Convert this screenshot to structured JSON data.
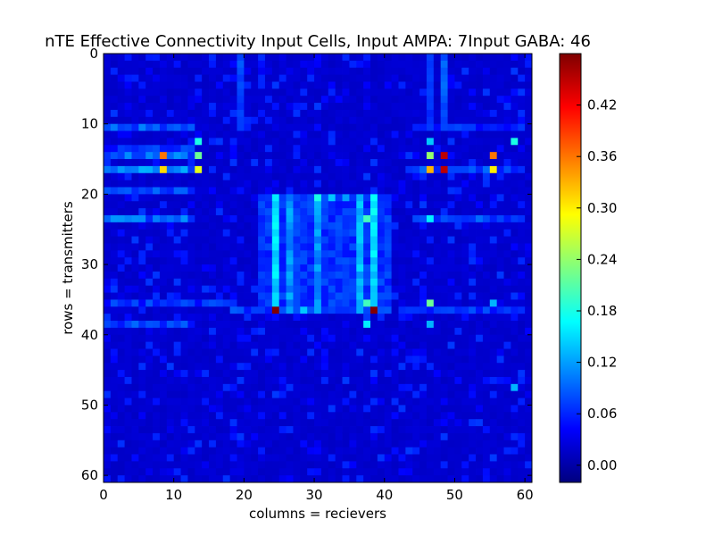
{
  "chart_data": {
    "type": "heatmap",
    "title": "nTE Effective Connectivity Input Cells, Input AMPA: 7Input GABA: 46",
    "xlabel": "columns = recievers",
    "ylabel": "rows = transmitters",
    "xlim": [
      0,
      61
    ],
    "ylim": [
      0,
      61
    ],
    "y_inverted": true,
    "n_rows": 61,
    "n_cols": 61,
    "x_ticks": [
      "0",
      "10",
      "20",
      "30",
      "40",
      "50",
      "60"
    ],
    "y_ticks": [
      "0",
      "10",
      "20",
      "30",
      "40",
      "50",
      "60"
    ],
    "colormap": "jet",
    "color_range": [
      -0.02,
      0.48
    ],
    "colorbar_ticks": [
      "0.00",
      "0.06",
      "0.12",
      "0.18",
      "0.24",
      "0.30",
      "0.36",
      "0.42"
    ],
    "background_value": 0.02,
    "row_bands": [
      {
        "row": 10,
        "cols": [
          0,
          12
        ],
        "value": 0.09
      },
      {
        "row": 13,
        "cols": [
          0,
          12
        ],
        "value": 0.07
      },
      {
        "row": 14,
        "cols": [
          0,
          12
        ],
        "value": 0.1
      },
      {
        "row": 16,
        "cols": [
          0,
          12
        ],
        "value": 0.11
      },
      {
        "row": 19,
        "cols": [
          0,
          12
        ],
        "value": 0.08
      },
      {
        "row": 23,
        "cols": [
          0,
          12
        ],
        "value": 0.1
      },
      {
        "row": 35,
        "cols": [
          0,
          18
        ],
        "value": 0.07
      },
      {
        "row": 36,
        "cols": [
          18,
          40
        ],
        "value": 0.08
      },
      {
        "row": 38,
        "cols": [
          0,
          12
        ],
        "value": 0.08
      },
      {
        "row": 10,
        "cols": [
          44,
          59
        ],
        "value": 0.07
      },
      {
        "row": 16,
        "cols": [
          44,
          59
        ],
        "value": 0.08
      },
      {
        "row": 23,
        "cols": [
          44,
          59
        ],
        "value": 0.08
      },
      {
        "row": 36,
        "cols": [
          44,
          59
        ],
        "value": 0.07
      }
    ],
    "col_bands": [
      {
        "col": 24,
        "rows": [
          20,
          36
        ],
        "value": 0.16
      },
      {
        "col": 26,
        "rows": [
          20,
          36
        ],
        "value": 0.12
      },
      {
        "col": 30,
        "rows": [
          20,
          36
        ],
        "value": 0.12
      },
      {
        "col": 36,
        "rows": [
          20,
          36
        ],
        "value": 0.14
      },
      {
        "col": 38,
        "rows": [
          20,
          36
        ],
        "value": 0.16
      },
      {
        "col": 19,
        "rows": [
          0,
          10
        ],
        "value": 0.08
      },
      {
        "col": 46,
        "rows": [
          0,
          10
        ],
        "value": 0.07
      },
      {
        "col": 48,
        "rows": [
          0,
          10
        ],
        "value": 0.09
      }
    ],
    "block": {
      "rows": [
        20,
        36
      ],
      "cols": [
        22,
        40
      ],
      "value": 0.07
    },
    "cells": [
      {
        "row": 14,
        "col": 8,
        "value": 0.36
      },
      {
        "row": 16,
        "col": 8,
        "value": 0.31
      },
      {
        "row": 14,
        "col": 13,
        "value": 0.22
      },
      {
        "row": 16,
        "col": 13,
        "value": 0.28
      },
      {
        "row": 14,
        "col": 46,
        "value": 0.24
      },
      {
        "row": 16,
        "col": 46,
        "value": 0.33
      },
      {
        "row": 14,
        "col": 48,
        "value": 0.45
      },
      {
        "row": 16,
        "col": 48,
        "value": 0.45
      },
      {
        "row": 14,
        "col": 55,
        "value": 0.36
      },
      {
        "row": 16,
        "col": 55,
        "value": 0.3
      },
      {
        "row": 12,
        "col": 46,
        "value": 0.14
      },
      {
        "row": 12,
        "col": 58,
        "value": 0.18
      },
      {
        "row": 12,
        "col": 13,
        "value": 0.18
      },
      {
        "row": 20,
        "col": 30,
        "value": 0.18
      },
      {
        "row": 20,
        "col": 32,
        "value": 0.14
      },
      {
        "row": 20,
        "col": 34,
        "value": 0.12
      },
      {
        "row": 23,
        "col": 37,
        "value": 0.2
      },
      {
        "row": 23,
        "col": 46,
        "value": 0.16
      },
      {
        "row": 36,
        "col": 24,
        "value": 0.48
      },
      {
        "row": 36,
        "col": 38,
        "value": 0.48
      },
      {
        "row": 36,
        "col": 28,
        "value": 0.14
      },
      {
        "row": 35,
        "col": 37,
        "value": 0.2
      },
      {
        "row": 35,
        "col": 46,
        "value": 0.22
      },
      {
        "row": 35,
        "col": 55,
        "value": 0.13
      },
      {
        "row": 38,
        "col": 37,
        "value": 0.16
      },
      {
        "row": 38,
        "col": 46,
        "value": 0.13
      },
      {
        "row": 47,
        "col": 58,
        "value": 0.13
      }
    ]
  }
}
